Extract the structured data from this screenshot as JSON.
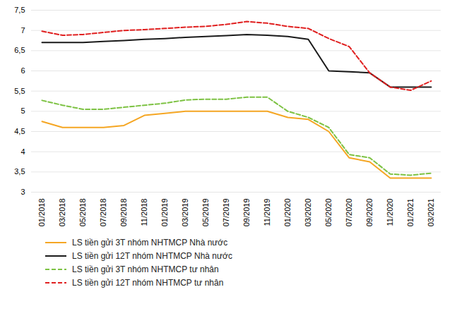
{
  "chart_data": {
    "type": "line",
    "categories": [
      "01/2018",
      "03/2018",
      "05/2018",
      "07/2018",
      "09/2018",
      "11/2018",
      "01/2019",
      "03/2019",
      "05/2019",
      "07/2019",
      "09/2019",
      "11/2019",
      "01/2020",
      "03/2020",
      "05/2020",
      "07/2020",
      "09/2020",
      "11/2020",
      "01/2021",
      "03/2021"
    ],
    "series": [
      {
        "name": "LS tiền gửi 3T nhóm NHTMCP Nhà nước",
        "color": "#F5A623",
        "line_style": "solid",
        "values": [
          4.75,
          4.6,
          4.6,
          4.6,
          4.65,
          4.9,
          4.95,
          5.0,
          5.0,
          5.0,
          5.0,
          5.0,
          4.85,
          4.8,
          4.5,
          3.85,
          3.75,
          3.35,
          3.35,
          3.35
        ]
      },
      {
        "name": "LS tiền gửi 12T nhóm NHTMCP Nhà nước",
        "color": "#1A1A1A",
        "line_style": "solid",
        "values": [
          6.7,
          6.7,
          6.7,
          6.73,
          6.75,
          6.78,
          6.8,
          6.83,
          6.85,
          6.87,
          6.9,
          6.88,
          6.85,
          6.78,
          6.0,
          5.98,
          5.95,
          5.6,
          5.6,
          5.6
        ]
      },
      {
        "name": "LS tiền gửi 3T nhóm NHTMCP tư nhân",
        "color": "#7DC243",
        "line_style": "dashed",
        "values": [
          5.27,
          5.15,
          5.05,
          5.05,
          5.1,
          5.15,
          5.2,
          5.28,
          5.3,
          5.3,
          5.35,
          5.35,
          5.0,
          4.85,
          4.6,
          3.93,
          3.85,
          3.45,
          3.42,
          3.47
        ]
      },
      {
        "name": "LS tiền gửi 12T nhóm NHTMCP tư nhân",
        "color": "#E02020",
        "line_style": "dashed",
        "values": [
          6.98,
          6.88,
          6.9,
          6.95,
          7.0,
          7.02,
          7.05,
          7.08,
          7.1,
          7.15,
          7.22,
          7.18,
          7.1,
          7.05,
          6.8,
          6.6,
          5.95,
          5.6,
          5.52,
          5.75
        ]
      }
    ],
    "ylim": [
      3.0,
      7.5
    ],
    "yticks": [
      3,
      {
        "value": 3.5,
        "label": "3,5"
      },
      4,
      {
        "value": 4.5,
        "label": "4,5"
      },
      5,
      {
        "value": 5.5,
        "label": "5,5"
      },
      6,
      {
        "value": 6.5,
        "label": "6,5"
      },
      7,
      {
        "value": 7.5,
        "label": "7,5"
      }
    ],
    "grid": true,
    "legend": "bottom"
  }
}
